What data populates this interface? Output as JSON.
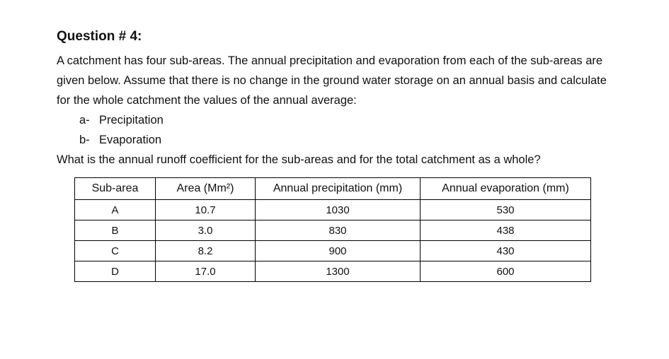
{
  "question": {
    "title": "Question # 4:",
    "intro": "A catchment has four sub-areas. The annual precipitation and evaporation from each of the sub-areas are given below. Assume that there is no change in the ground water storage on an annual basis and calculate for the whole catchment the values of the annual average:",
    "items": [
      {
        "marker": "a-",
        "text": "Precipitation"
      },
      {
        "marker": "b-",
        "text": "Evaporation"
      }
    ],
    "closing": "What is the annual runoff coefficient for the sub-areas and for the total catchment as a whole?"
  },
  "table": {
    "headers": [
      "Sub-area",
      "Area (Mm²)",
      "Annual precipitation (mm)",
      "Annual evaporation (mm)"
    ],
    "rows": [
      [
        "A",
        "10.7",
        "1030",
        "530"
      ],
      [
        "B",
        "3.0",
        "830",
        "438"
      ],
      [
        "C",
        "8.2",
        "900",
        "430"
      ],
      [
        "D",
        "17.0",
        "1300",
        "600"
      ]
    ]
  }
}
